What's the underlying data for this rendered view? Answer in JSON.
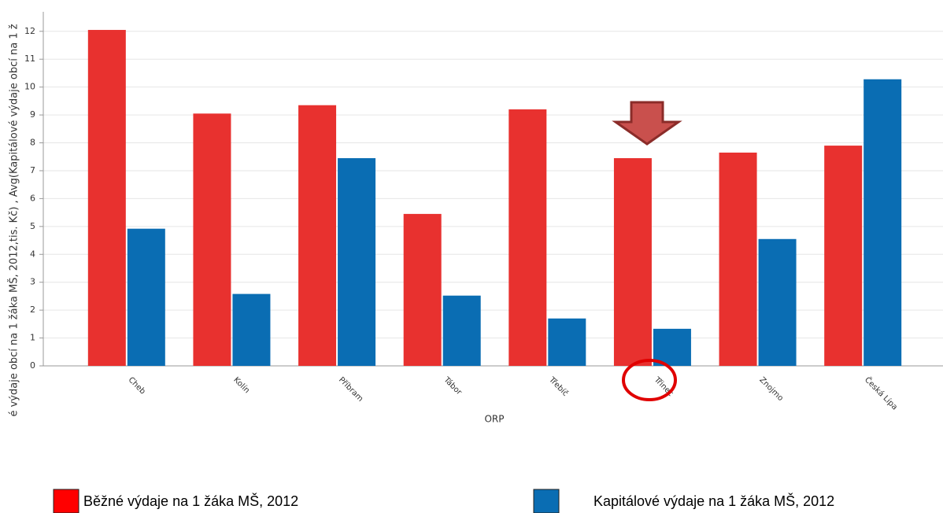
{
  "chart_data": {
    "type": "bar",
    "y_label": "é výdaje obcí na 1 žáka MŠ, 2012,tis. Kč) , Avg(Kapitálové výdaje obcí na 1 ž",
    "x_label": "ORP",
    "categories": [
      "Cheb",
      "Kolín",
      "Příbram",
      "Tábor",
      "Třebíč",
      "Třinec",
      "Znojmo",
      "Česká Lípa"
    ],
    "series": [
      {
        "name": "Běžné výdaje na 1 žáka MŠ, 2012",
        "color": "#e8312f",
        "values": [
          12.05,
          9.05,
          9.35,
          5.45,
          9.2,
          7.45,
          7.65,
          7.9
        ]
      },
      {
        "name": "Kapitálové výdaje na 1 žáka MŠ, 2012",
        "color": "#0a6db3",
        "values": [
          4.92,
          2.58,
          7.45,
          2.52,
          1.7,
          1.33,
          4.55,
          10.28
        ]
      }
    ],
    "ylim": [
      0,
      12.7
    ],
    "yticks": [
      0,
      1,
      2,
      3,
      4,
      5,
      6,
      7,
      8,
      9,
      10,
      11,
      12
    ],
    "grid": true
  }
}
